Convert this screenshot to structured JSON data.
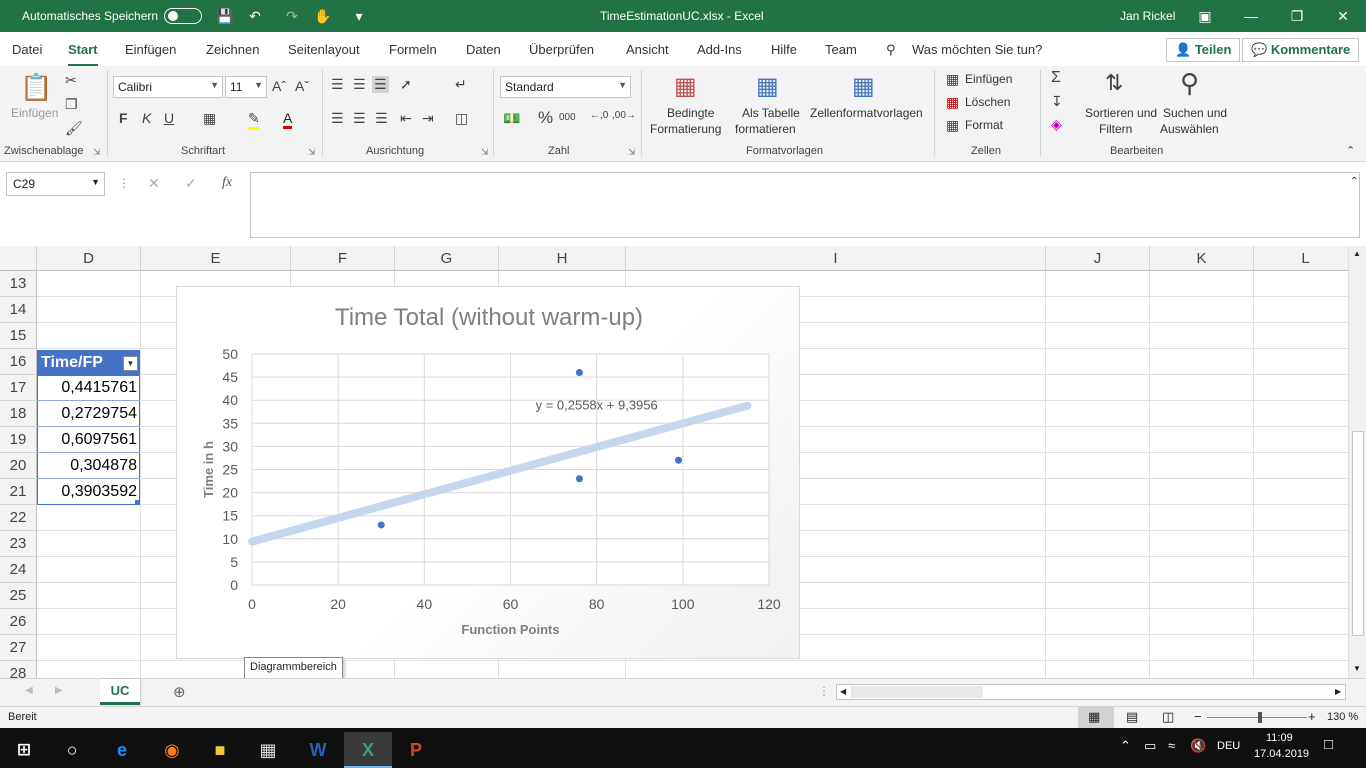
{
  "titlebar": {
    "autosave_label": "Automatisches Speichern",
    "doc_title": "TimeEstimationUC.xlsx  -  Excel",
    "user": "Jan Rickel"
  },
  "tabs": [
    "Datei",
    "Start",
    "Einfügen",
    "Zeichnen",
    "Seitenlayout",
    "Formeln",
    "Daten",
    "Überprüfen",
    "Ansicht",
    "Add-Ins",
    "Hilfe",
    "Team"
  ],
  "tellme": "Was möchten Sie tun?",
  "share_label": "Teilen",
  "comments_label": "Kommentare",
  "ribbon": {
    "paste_label": "Einfügen",
    "clipboard_group": "Zwischenablage",
    "font_name": "Calibri",
    "font_size": "11",
    "bold": "F",
    "italic": "K",
    "underline": "U",
    "font_group": "Schriftart",
    "alignment_group": "Ausrichtung",
    "number_format": "Standard",
    "number_group": "Zahl",
    "cond_format_l1": "Bedingte",
    "cond_format_l2": "Formatierung",
    "as_table_l1": "Als Tabelle",
    "as_table_l2": "formatieren",
    "cell_styles": "Zellenformatvorlagen",
    "styles_group": "Formatvorlagen",
    "insert_cells": "Einfügen",
    "delete_cells": "Löschen",
    "format_cells": "Format",
    "cells_group": "Zellen",
    "sort_l1": "Sortieren und",
    "sort_l2": "Filtern",
    "find_l1": "Suchen und",
    "find_l2": "Auswählen",
    "editing_group": "Bearbeiten"
  },
  "formula_bar": {
    "name_box": "C29",
    "fx": "fx",
    "formula": ""
  },
  "grid": {
    "columns": [
      "D",
      "E",
      "F",
      "G",
      "H",
      "I",
      "J",
      "K",
      "L"
    ],
    "rows": [
      "13",
      "14",
      "15",
      "16",
      "17",
      "18",
      "19",
      "20",
      "21",
      "22",
      "23",
      "24",
      "25",
      "26",
      "27",
      "28"
    ],
    "table_header": "Time/FP",
    "values": [
      "0,4415761",
      "0,2729754",
      "0,6097561",
      "0,304878",
      "0,3903592"
    ]
  },
  "chart_data": {
    "type": "scatter",
    "title": "Time Total (without warm-up)",
    "xlabel": "Function Points",
    "ylabel": "Time in h",
    "xlim": [
      0,
      120
    ],
    "ylim": [
      0,
      50
    ],
    "xticks": [
      "0",
      "20",
      "40",
      "60",
      "80",
      "100",
      "120"
    ],
    "yticks": [
      "0",
      "5",
      "10",
      "15",
      "20",
      "25",
      "30",
      "35",
      "40",
      "45",
      "50"
    ],
    "points": [
      {
        "x": 30,
        "y": 13
      },
      {
        "x": 76,
        "y": 46
      },
      {
        "x": 76,
        "y": 23
      },
      {
        "x": 99,
        "y": 27
      }
    ],
    "trendline": {
      "slope": 0.2558,
      "intercept": 9.3956,
      "x_start": 0,
      "x_end": 115
    },
    "trendline_label": "y = 0,2558x + 9,3956",
    "grid": true,
    "point_color": "#4472c4",
    "trend_color": "#c5d6ee"
  },
  "tooltip": "Diagrammbereich",
  "sheet_tab": "UC",
  "status": {
    "ready": "Bereit",
    "zoom": "130 %"
  },
  "taskbar": {
    "lang": "DEU",
    "time": "11:09",
    "date": "17.04.2019"
  },
  "colors": {
    "excel_green": "#217346",
    "table_blue": "#4472c4"
  }
}
